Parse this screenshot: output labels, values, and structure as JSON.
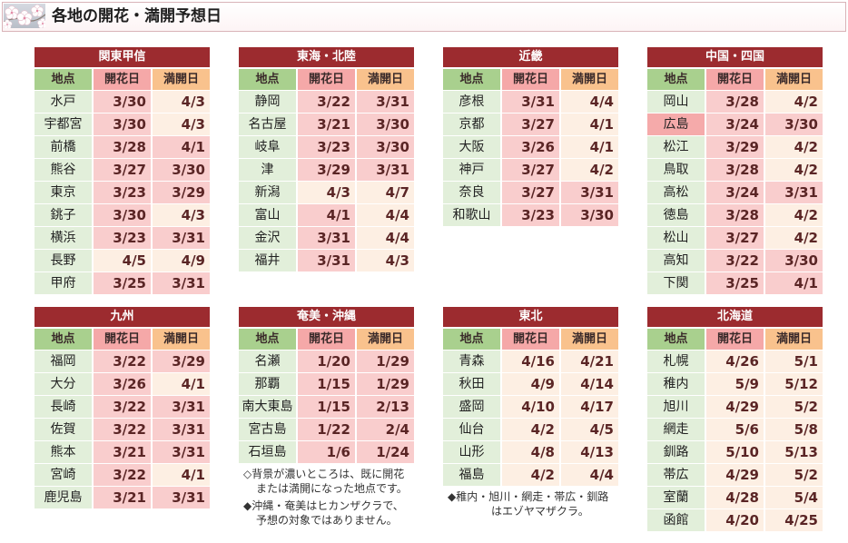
{
  "header": {
    "title": "各地の開花・満開予想日",
    "icon": "cherry-blossom-icon"
  },
  "columns": {
    "place": "地点",
    "bloom": "開花日",
    "full": "満開日"
  },
  "colors": {
    "region_header": "#9c2b2f",
    "place_header": "#a9d08e",
    "bloom_header": "#f5a8a8",
    "full_header": "#f9c28d",
    "place_cell": "#e2efda",
    "done_cell": "#f9cdcd",
    "todo_cell": "#fdefe3",
    "highlight_place": "#f5aaaa"
  },
  "regions": [
    {
      "name": "関東甲信",
      "rows": [
        {
          "place": "水戸",
          "bloom": "3/30",
          "full": "4/3",
          "bloom_done": true,
          "full_done": false
        },
        {
          "place": "宇都宮",
          "bloom": "3/30",
          "full": "4/3",
          "bloom_done": true,
          "full_done": false
        },
        {
          "place": "前橋",
          "bloom": "3/28",
          "full": "4/1",
          "bloom_done": true,
          "full_done": true
        },
        {
          "place": "熊谷",
          "bloom": "3/27",
          "full": "3/30",
          "bloom_done": true,
          "full_done": true
        },
        {
          "place": "東京",
          "bloom": "3/23",
          "full": "3/29",
          "bloom_done": true,
          "full_done": true
        },
        {
          "place": "銚子",
          "bloom": "3/30",
          "full": "4/3",
          "bloom_done": true,
          "full_done": false
        },
        {
          "place": "横浜",
          "bloom": "3/23",
          "full": "3/31",
          "bloom_done": true,
          "full_done": true
        },
        {
          "place": "長野",
          "bloom": "4/5",
          "full": "4/9",
          "bloom_done": false,
          "full_done": false
        },
        {
          "place": "甲府",
          "bloom": "3/25",
          "full": "3/31",
          "bloom_done": true,
          "full_done": true
        }
      ],
      "notes": []
    },
    {
      "name": "東海・北陸",
      "rows": [
        {
          "place": "静岡",
          "bloom": "3/22",
          "full": "3/31",
          "bloom_done": true,
          "full_done": true
        },
        {
          "place": "名古屋",
          "bloom": "3/21",
          "full": "3/30",
          "bloom_done": true,
          "full_done": true
        },
        {
          "place": "岐阜",
          "bloom": "3/23",
          "full": "3/30",
          "bloom_done": true,
          "full_done": true
        },
        {
          "place": "津",
          "bloom": "3/29",
          "full": "3/31",
          "bloom_done": true,
          "full_done": true
        },
        {
          "place": "新潟",
          "bloom": "4/3",
          "full": "4/7",
          "bloom_done": false,
          "full_done": false
        },
        {
          "place": "富山",
          "bloom": "4/1",
          "full": "4/4",
          "bloom_done": true,
          "full_done": false
        },
        {
          "place": "金沢",
          "bloom": "3/31",
          "full": "4/4",
          "bloom_done": true,
          "full_done": false
        },
        {
          "place": "福井",
          "bloom": "3/31",
          "full": "4/3",
          "bloom_done": true,
          "full_done": false
        }
      ],
      "notes": []
    },
    {
      "name": "近畿",
      "rows": [
        {
          "place": "彦根",
          "bloom": "3/31",
          "full": "4/4",
          "bloom_done": true,
          "full_done": false
        },
        {
          "place": "京都",
          "bloom": "3/27",
          "full": "4/1",
          "bloom_done": true,
          "full_done": false
        },
        {
          "place": "大阪",
          "bloom": "3/26",
          "full": "4/1",
          "bloom_done": true,
          "full_done": false
        },
        {
          "place": "神戸",
          "bloom": "3/27",
          "full": "4/2",
          "bloom_done": true,
          "full_done": false
        },
        {
          "place": "奈良",
          "bloom": "3/27",
          "full": "3/31",
          "bloom_done": true,
          "full_done": true
        },
        {
          "place": "和歌山",
          "bloom": "3/23",
          "full": "3/30",
          "bloom_done": true,
          "full_done": true
        }
      ],
      "notes": []
    },
    {
      "name": "中国・四国",
      "rows": [
        {
          "place": "岡山",
          "bloom": "3/28",
          "full": "4/2",
          "bloom_done": true,
          "full_done": false
        },
        {
          "place": "広島",
          "bloom": "3/24",
          "full": "3/30",
          "bloom_done": true,
          "full_done": true,
          "highlight": true
        },
        {
          "place": "松江",
          "bloom": "3/29",
          "full": "4/2",
          "bloom_done": true,
          "full_done": false
        },
        {
          "place": "鳥取",
          "bloom": "3/28",
          "full": "4/2",
          "bloom_done": true,
          "full_done": false
        },
        {
          "place": "高松",
          "bloom": "3/24",
          "full": "3/31",
          "bloom_done": true,
          "full_done": true
        },
        {
          "place": "徳島",
          "bloom": "3/28",
          "full": "4/2",
          "bloom_done": true,
          "full_done": false
        },
        {
          "place": "松山",
          "bloom": "3/27",
          "full": "4/2",
          "bloom_done": true,
          "full_done": false
        },
        {
          "place": "高知",
          "bloom": "3/22",
          "full": "3/30",
          "bloom_done": true,
          "full_done": true
        },
        {
          "place": "下関",
          "bloom": "3/25",
          "full": "4/1",
          "bloom_done": true,
          "full_done": true
        }
      ],
      "notes": []
    },
    {
      "name": "九州",
      "rows": [
        {
          "place": "福岡",
          "bloom": "3/22",
          "full": "3/29",
          "bloom_done": true,
          "full_done": true
        },
        {
          "place": "大分",
          "bloom": "3/26",
          "full": "4/1",
          "bloom_done": true,
          "full_done": false
        },
        {
          "place": "長崎",
          "bloom": "3/22",
          "full": "3/31",
          "bloom_done": true,
          "full_done": true
        },
        {
          "place": "佐賀",
          "bloom": "3/22",
          "full": "3/31",
          "bloom_done": true,
          "full_done": true
        },
        {
          "place": "熊本",
          "bloom": "3/21",
          "full": "3/31",
          "bloom_done": true,
          "full_done": true
        },
        {
          "place": "宮崎",
          "bloom": "3/22",
          "full": "4/1",
          "bloom_done": true,
          "full_done": false
        },
        {
          "place": "鹿児島",
          "bloom": "3/21",
          "full": "3/31",
          "bloom_done": true,
          "full_done": true
        }
      ],
      "notes": []
    },
    {
      "name": "奄美・沖縄",
      "rows": [
        {
          "place": "名瀬",
          "bloom": "1/20",
          "full": "1/29",
          "bloom_done": true,
          "full_done": true
        },
        {
          "place": "那覇",
          "bloom": "1/15",
          "full": "1/29",
          "bloom_done": true,
          "full_done": true
        },
        {
          "place": "南大東島",
          "bloom": "1/15",
          "full": "2/13",
          "bloom_done": true,
          "full_done": true
        },
        {
          "place": "宮古島",
          "bloom": "1/22",
          "full": "2/4",
          "bloom_done": true,
          "full_done": true
        },
        {
          "place": "石垣島",
          "bloom": "1/6",
          "full": "1/24",
          "bloom_done": true,
          "full_done": true
        }
      ],
      "notes": [
        {
          "lines": [
            "◇背景が濃いところは、既に開花",
            "または満開になった地点です。"
          ]
        },
        {
          "lines": [
            "◆沖縄・奄美はヒカンザクラで、",
            "予想の対象ではありません。"
          ]
        }
      ]
    },
    {
      "name": "東北",
      "rows": [
        {
          "place": "青森",
          "bloom": "4/16",
          "full": "4/21",
          "bloom_done": false,
          "full_done": false
        },
        {
          "place": "秋田",
          "bloom": "4/9",
          "full": "4/14",
          "bloom_done": false,
          "full_done": false
        },
        {
          "place": "盛岡",
          "bloom": "4/10",
          "full": "4/17",
          "bloom_done": false,
          "full_done": false
        },
        {
          "place": "仙台",
          "bloom": "4/2",
          "full": "4/5",
          "bloom_done": false,
          "full_done": false
        },
        {
          "place": "山形",
          "bloom": "4/8",
          "full": "4/13",
          "bloom_done": false,
          "full_done": false
        },
        {
          "place": "福島",
          "bloom": "4/2",
          "full": "4/4",
          "bloom_done": false,
          "full_done": false
        }
      ],
      "notes": [
        {
          "lines": [
            "◆稚内・旭川・網走・帯広・釧路",
            "はエゾヤマザクラ。"
          ]
        }
      ]
    },
    {
      "name": "北海道",
      "rows": [
        {
          "place": "札幌",
          "bloom": "4/26",
          "full": "5/1",
          "bloom_done": false,
          "full_done": false
        },
        {
          "place": "稚内",
          "bloom": "5/9",
          "full": "5/12",
          "bloom_done": false,
          "full_done": false
        },
        {
          "place": "旭川",
          "bloom": "4/29",
          "full": "5/2",
          "bloom_done": false,
          "full_done": false
        },
        {
          "place": "網走",
          "bloom": "5/6",
          "full": "5/8",
          "bloom_done": false,
          "full_done": false
        },
        {
          "place": "釧路",
          "bloom": "5/10",
          "full": "5/13",
          "bloom_done": false,
          "full_done": false
        },
        {
          "place": "帯広",
          "bloom": "4/29",
          "full": "5/2",
          "bloom_done": false,
          "full_done": false
        },
        {
          "place": "室蘭",
          "bloom": "4/28",
          "full": "5/4",
          "bloom_done": false,
          "full_done": false
        },
        {
          "place": "函館",
          "bloom": "4/20",
          "full": "4/25",
          "bloom_done": false,
          "full_done": false
        }
      ],
      "notes": []
    }
  ]
}
